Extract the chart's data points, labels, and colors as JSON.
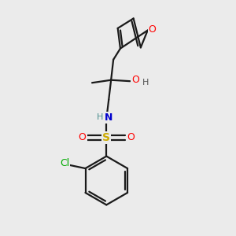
{
  "background_color": "#ebebeb",
  "bond_color": "#1a1a1a",
  "atom_colors": {
    "O": "#ff0000",
    "N": "#0000cd",
    "S": "#ccaa00",
    "Cl": "#00aa00",
    "H_light": "#4f9090",
    "H_dark": "#555555",
    "C": "#1a1a1a"
  },
  "figsize": [
    3.0,
    3.0
  ],
  "dpi": 100
}
